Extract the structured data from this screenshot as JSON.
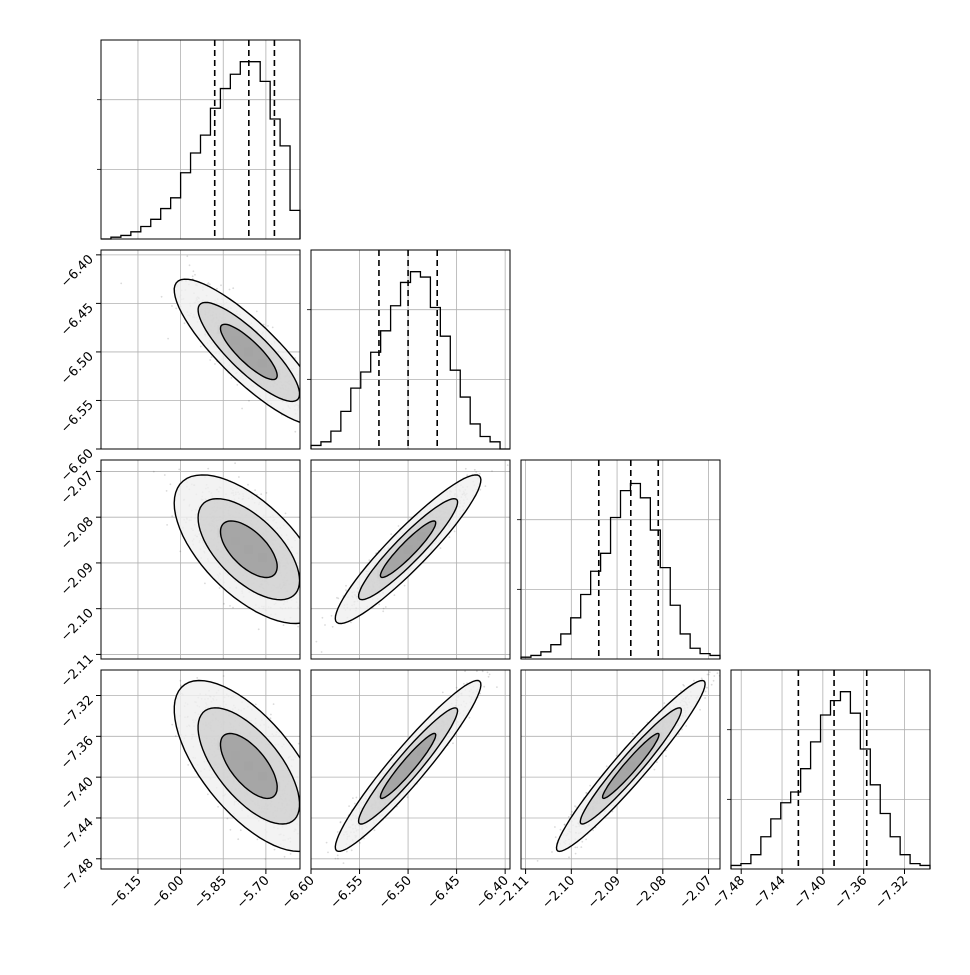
{
  "chart_data": {
    "type": "corner",
    "grid": true,
    "params": [
      {
        "range": [
          -6.28,
          -5.58
        ],
        "ticks": [
          -6.15,
          -6.0,
          -5.85,
          -5.7
        ],
        "tick_labels": [
          "−6.15",
          "−6.00",
          "−5.85",
          "−5.70"
        ],
        "quantiles": [
          -5.88,
          -5.76,
          -5.67
        ],
        "hist": [
          0,
          1,
          2,
          4,
          7,
          11,
          17,
          23,
          37,
          48,
          58,
          73,
          84,
          92,
          99,
          99,
          88,
          67,
          52,
          16
        ]
      },
      {
        "range": [
          -6.6,
          -6.395
        ],
        "ticks": [
          -6.6,
          -6.55,
          -6.5,
          -6.45,
          -6.4
        ],
        "tick_labels": [
          "−6.60",
          "−6.55",
          "−6.50",
          "−6.45",
          "−6.40"
        ],
        "quantiles": [
          -6.53,
          -6.5,
          -6.47
        ],
        "hist": [
          2,
          4,
          10,
          21,
          34,
          43,
          54,
          66,
          80,
          93,
          99,
          96,
          79,
          63,
          44,
          29,
          14,
          7,
          4,
          0
        ]
      },
      {
        "range": [
          -2.111,
          -2.0675
        ],
        "ticks": [
          -2.11,
          -2.1,
          -2.09,
          -2.08,
          -2.07
        ],
        "tick_labels": [
          "−2.11",
          "−2.10",
          "−2.09",
          "−2.08",
          "−2.07"
        ],
        "quantiles": [
          -2.094,
          -2.087,
          -2.081
        ],
        "hist": [
          1,
          2,
          4,
          8,
          14,
          23,
          36,
          49,
          59,
          79,
          94,
          98,
          90,
          72,
          51,
          30,
          14,
          6,
          3,
          2
        ]
      },
      {
        "range": [
          -7.49,
          -7.295
        ],
        "ticks": [
          -7.48,
          -7.44,
          -7.4,
          -7.36,
          -7.32
        ],
        "tick_labels": [
          "−7.48",
          "−7.44",
          "−7.40",
          "−7.36",
          "−7.32"
        ],
        "quantiles": [
          -7.424,
          -7.389,
          -7.357
        ],
        "hist": [
          2,
          3,
          8,
          18,
          28,
          37,
          43,
          56,
          71,
          86,
          94,
          99,
          87,
          67,
          47,
          31,
          18,
          8,
          3,
          2
        ]
      }
    ],
    "corr": [
      [
        1.0,
        -0.85,
        -0.62,
        -0.66
      ],
      [
        -0.85,
        1.0,
        0.93,
        0.95
      ],
      [
        -0.62,
        0.93,
        1.0,
        0.96
      ],
      [
        -0.66,
        0.95,
        0.96,
        1.0
      ]
    ],
    "colors": {
      "line": "#000000",
      "grid": "#b0b0b0",
      "points": "#555555"
    }
  }
}
